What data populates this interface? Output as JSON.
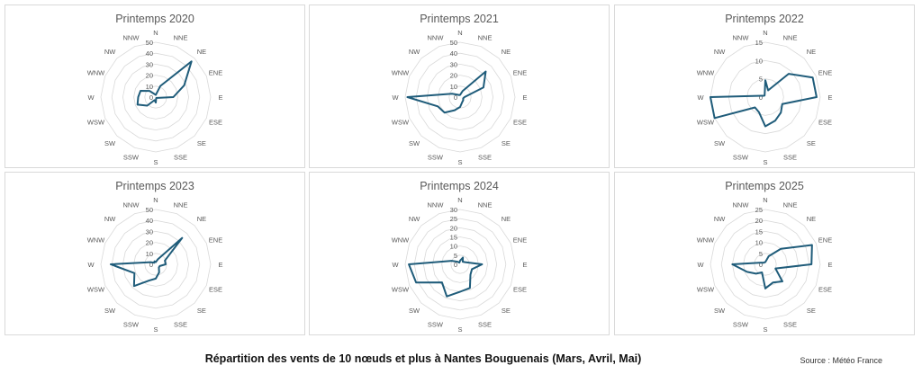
{
  "footer": {
    "title": "Répartition des vents de 10 nœuds et plus à Nantes Bouguenais (Mars, Avril, Mai)",
    "source": "Source : Météo France"
  },
  "colors": {
    "series": "#1f5c7a",
    "grid": "#d9d9d9",
    "label": "#595959"
  },
  "chart_data": [
    {
      "type": "radar",
      "title": "Printemps 2020",
      "categories": [
        "N",
        "NNE",
        "NE",
        "ENE",
        "E",
        "ESE",
        "SE",
        "SSE",
        "S",
        "SSW",
        "SW",
        "WSW",
        "W",
        "WNW",
        "NW",
        "NNW"
      ],
      "ticks": [
        0,
        10,
        20,
        30,
        40,
        50
      ],
      "rmax": 50,
      "values": [
        2,
        11,
        46,
        28,
        16,
        2,
        1,
        1,
        5,
        3,
        11,
        18,
        16,
        15,
        8,
        3
      ]
    },
    {
      "type": "radar",
      "title": "Printemps 2021",
      "categories": [
        "N",
        "NNE",
        "NE",
        "ENE",
        "E",
        "ESE",
        "SE",
        "SSE",
        "S",
        "SSW",
        "SW",
        "WSW",
        "W",
        "WNW",
        "NW",
        "NNW"
      ],
      "ticks": [
        0,
        10,
        20,
        30,
        40,
        50
      ],
      "rmax": 50,
      "values": [
        2,
        6,
        33,
        23,
        4,
        3,
        4,
        5,
        9,
        13,
        20,
        22,
        48,
        8,
        3,
        2
      ]
    },
    {
      "type": "radar",
      "title": "Printemps 2022",
      "categories": [
        "N",
        "NNE",
        "NE",
        "ENE",
        "E",
        "ESE",
        "SE",
        "SSE",
        "S",
        "SSW",
        "SW",
        "WSW",
        "W",
        "WNW",
        "NW",
        "NNW"
      ],
      "ticks": [
        0,
        5,
        10,
        15
      ],
      "rmax": 15,
      "values": [
        4.6,
        2,
        9,
        14,
        14,
        5,
        6,
        7,
        8,
        4.5,
        4,
        15,
        15,
        1,
        0.5,
        0.5
      ]
    },
    {
      "type": "radar",
      "title": "Printemps 2023",
      "categories": [
        "N",
        "NNE",
        "NE",
        "ENE",
        "E",
        "ESE",
        "SE",
        "SSE",
        "S",
        "SSW",
        "SW",
        "WSW",
        "W",
        "WNW",
        "NW",
        "NNW"
      ],
      "ticks": [
        0,
        10,
        20,
        30,
        40,
        50
      ],
      "rmax": 50,
      "values": [
        2,
        5,
        34,
        9,
        9,
        4,
        4,
        8,
        13,
        16,
        28,
        21,
        41,
        5,
        2,
        3
      ]
    },
    {
      "type": "radar",
      "title": "Printemps 2024",
      "categories": [
        "N",
        "NNE",
        "NE",
        "ENE",
        "E",
        "ESE",
        "SE",
        "SSE",
        "S",
        "SSW",
        "SW",
        "WSW",
        "W",
        "WNW",
        "NW",
        "NNW"
      ],
      "ticks": [
        0,
        5,
        10,
        15,
        20,
        25,
        30
      ],
      "rmax": 30,
      "values": [
        2,
        4,
        2,
        3,
        12,
        7,
        8,
        14,
        15,
        19,
        14,
        26,
        28,
        5,
        2,
        1
      ]
    },
    {
      "type": "radar",
      "title": "Printemps 2025",
      "categories": [
        "N",
        "NNE",
        "NE",
        "ENE",
        "E",
        "ESE",
        "SE",
        "SSE",
        "S",
        "SSW",
        "SW",
        "WSW",
        "W",
        "WNW",
        "NW",
        "NNW"
      ],
      "ticks": [
        0,
        5,
        10,
        15,
        20,
        25
      ],
      "rmax": 25,
      "values": [
        1,
        4,
        10,
        23,
        21,
        5,
        11,
        9,
        11,
        4,
        6,
        9,
        15,
        2,
        1,
        1
      ]
    }
  ]
}
